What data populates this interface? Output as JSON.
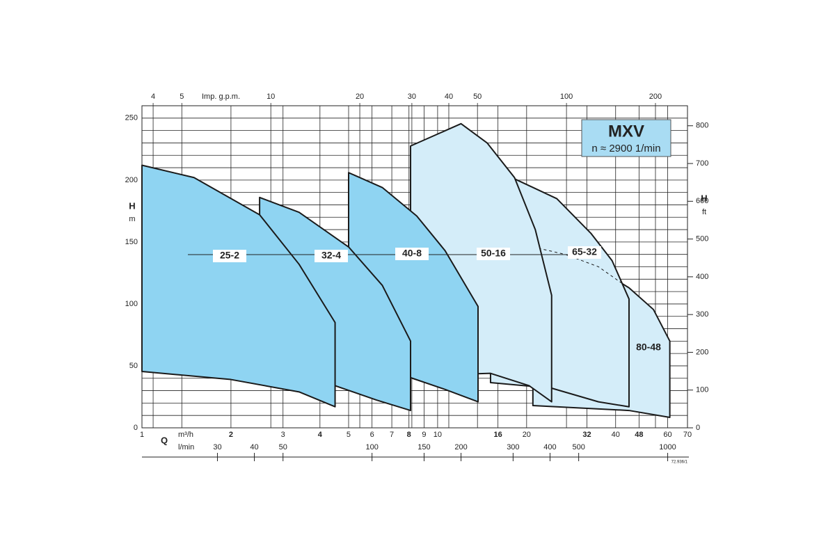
{
  "chart_data": {
    "type": "area",
    "title": "MXV",
    "subtitle": "n ≈ 2900 1/min",
    "ylabel": "H",
    "yunit": "m",
    "y2label": "H",
    "y2unit": "ft",
    "xlabel": "Q",
    "xunit": "m³/h",
    "x_lpm_unit": "l/min",
    "x_gpm_unit": "Imp. g.p.m.",
    "note": "72.936/1",
    "xlog": true,
    "xlim": [
      1,
      70
    ],
    "xticks": [
      1,
      2,
      3,
      4,
      5,
      6,
      7,
      8,
      9,
      10,
      16,
      20,
      32,
      40,
      48,
      60,
      70
    ],
    "x_lpm_ticks": [
      {
        "value": 1.8,
        "label": "30"
      },
      {
        "value": 2.4,
        "label": "40"
      },
      {
        "value": 3,
        "label": "50"
      },
      {
        "value": 6,
        "label": "100"
      },
      {
        "value": 9,
        "label": "150"
      },
      {
        "value": 12,
        "label": "200"
      },
      {
        "value": 18,
        "label": "300"
      },
      {
        "value": 24,
        "label": "400"
      },
      {
        "value": 30,
        "label": "500"
      },
      {
        "value": 60,
        "label": "1000"
      }
    ],
    "x_gpm_ticks": [
      {
        "value": 1.091,
        "label": "4"
      },
      {
        "value": 1.364,
        "label": "5"
      },
      {
        "value": 2.728,
        "label": "10"
      },
      {
        "value": 5.455,
        "label": "20"
      },
      {
        "value": 8.183,
        "label": "30"
      },
      {
        "value": 10.91,
        "label": "40"
      },
      {
        "value": 13.64,
        "label": "50"
      },
      {
        "value": 27.28,
        "label": "100"
      },
      {
        "value": 54.55,
        "label": "200"
      }
    ],
    "ylim": [
      0,
      260
    ],
    "yticks": [
      0,
      50,
      100,
      150,
      200,
      250
    ],
    "ygrid": [
      0,
      10,
      20,
      30,
      40,
      50,
      60,
      70,
      80,
      90,
      100,
      110,
      120,
      130,
      140,
      150,
      160,
      170,
      180,
      190,
      200,
      210,
      220,
      230,
      240,
      250
    ],
    "y2lim": [
      0,
      853
    ],
    "y2ticks": [
      0,
      100,
      200,
      300,
      400,
      500,
      600,
      700,
      800
    ],
    "grid": true,
    "series": [
      {
        "name": "25-2",
        "color": "#8fd4f2",
        "x": [
          1,
          1.5,
          2.5,
          3.4,
          4.5,
          4.5,
          3.4,
          2,
          1
        ],
        "values": [
          212,
          202,
          172,
          132,
          85,
          17,
          29,
          39,
          45.5
        ]
      },
      {
        "name": "32-4",
        "color": "#8fd4f2",
        "x": [
          2.5,
          3.4,
          5,
          6.5,
          8.1,
          8.1,
          6.2,
          4.5,
          2.5
        ],
        "values": [
          186,
          174,
          146,
          115,
          70,
          14,
          22.5,
          34,
          37.6
        ]
      },
      {
        "name": "40-8",
        "color": "#8fd4f2",
        "x": [
          5,
          6.5,
          8.5,
          10.6,
          13.7,
          13.7,
          10.6,
          8.1,
          5
        ],
        "values": [
          206,
          194,
          171,
          143,
          98,
          21,
          31,
          40.5,
          42
        ]
      },
      {
        "name": "50-16",
        "color": "#d4edf9",
        "x": [
          8.1,
          12,
          14.7,
          18.2,
          21.4,
          24.3,
          24.3,
          20.4,
          15.1,
          8.1
        ],
        "values": [
          227.5,
          245.5,
          230,
          202,
          160,
          107,
          21,
          34,
          44,
          42
        ]
      },
      {
        "name": "65-32",
        "color": "#d4edf9",
        "x": [
          15.1,
          18.2,
          25.3,
          33,
          38.9,
          44.4,
          44.4,
          35,
          24.3,
          15.1
        ],
        "values": [
          194,
          201,
          185,
          157,
          135,
          104,
          17,
          21,
          32,
          36.5
        ],
        "limit": {
          "x": [
            21,
            27,
            35,
            43
          ],
          "values": [
            146,
            140,
            130,
            115
          ]
        }
      },
      {
        "name": "80-48",
        "color": "#d4edf9",
        "x": [
          21,
          33,
          44.4,
          53.7,
          61,
          61,
          44.4,
          21
        ],
        "values": [
          149,
          132,
          113,
          95.5,
          70,
          8.4,
          14,
          18
        ]
      }
    ]
  }
}
